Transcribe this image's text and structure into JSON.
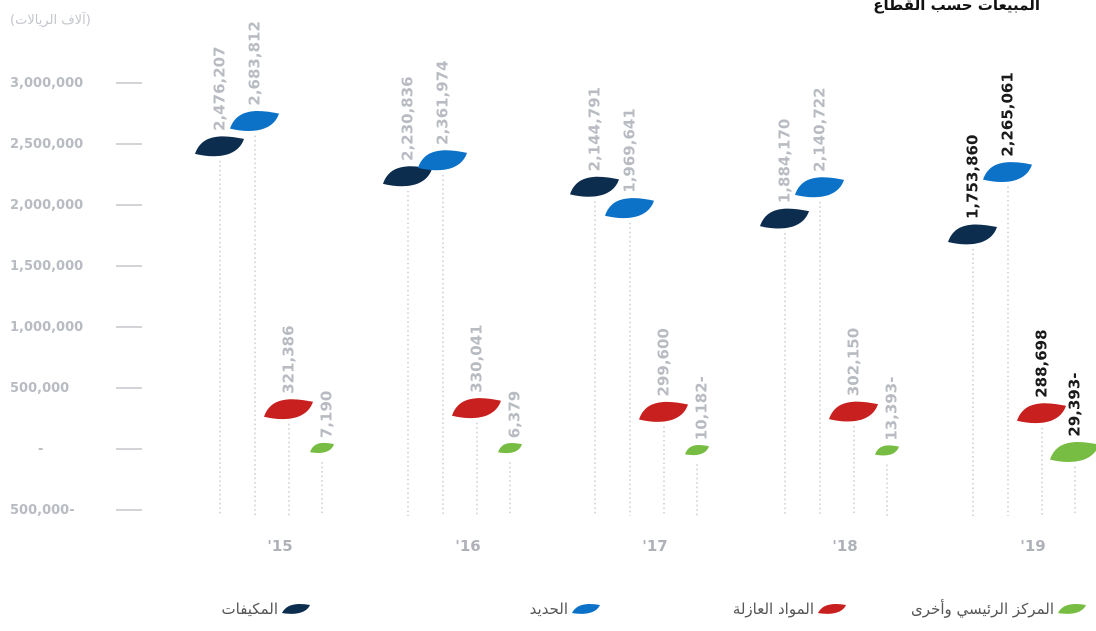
{
  "chart_data": {
    "type": "scatter",
    "title": "المبيعات حسب القطاع",
    "ylabel": "(آلاف الريالات)",
    "categories": [
      "'15",
      "'16",
      "'17",
      "'18",
      "'19"
    ],
    "ylim": [
      -500000,
      3000000
    ],
    "yticks": [
      {
        "value": 3000000,
        "label": "3,000,000"
      },
      {
        "value": 2500000,
        "label": "2,500,000"
      },
      {
        "value": 2000000,
        "label": "2,000,000"
      },
      {
        "value": 1500000,
        "label": "1,500,000"
      },
      {
        "value": 1000000,
        "label": "1,000,000"
      },
      {
        "value": 500000,
        "label": "500,000"
      },
      {
        "value": 0,
        "label": "-"
      },
      {
        "value": -500000,
        "label": "500,000-"
      }
    ],
    "highlight_category": 4,
    "grid": false,
    "legend_position": "bottom",
    "series": [
      {
        "name": "المكيفات",
        "color": "#0d2d4f",
        "values": [
          2476207,
          2230836,
          2144791,
          1884170,
          1753860
        ],
        "labels": [
          "2,476,207",
          "2,230,836",
          "2,144,791",
          "1,884,170",
          "1,753,860"
        ]
      },
      {
        "name": "الحديد",
        "color": "#0b72c8",
        "values": [
          2683812,
          2361974,
          1969641,
          2140722,
          2265061
        ],
        "labels": [
          "2,683,812",
          "2,361,974",
          "1,969,641",
          "2,140,722",
          "2,265,061"
        ]
      },
      {
        "name": "المواد العازلة",
        "color": "#c8201e",
        "values": [
          321386,
          330041,
          299600,
          302150,
          288698
        ],
        "labels": [
          "321,386",
          "330,041",
          "299,600",
          "302,150",
          "288,698"
        ]
      },
      {
        "name": "المركز الرئيسي وأخرى",
        "color": "#78bd43",
        "values": [
          7190,
          6379,
          -10182,
          -13393,
          -29393
        ],
        "labels": [
          "7,190",
          "6,379",
          "10,182-",
          "13,393-",
          "29,393-"
        ]
      }
    ]
  }
}
